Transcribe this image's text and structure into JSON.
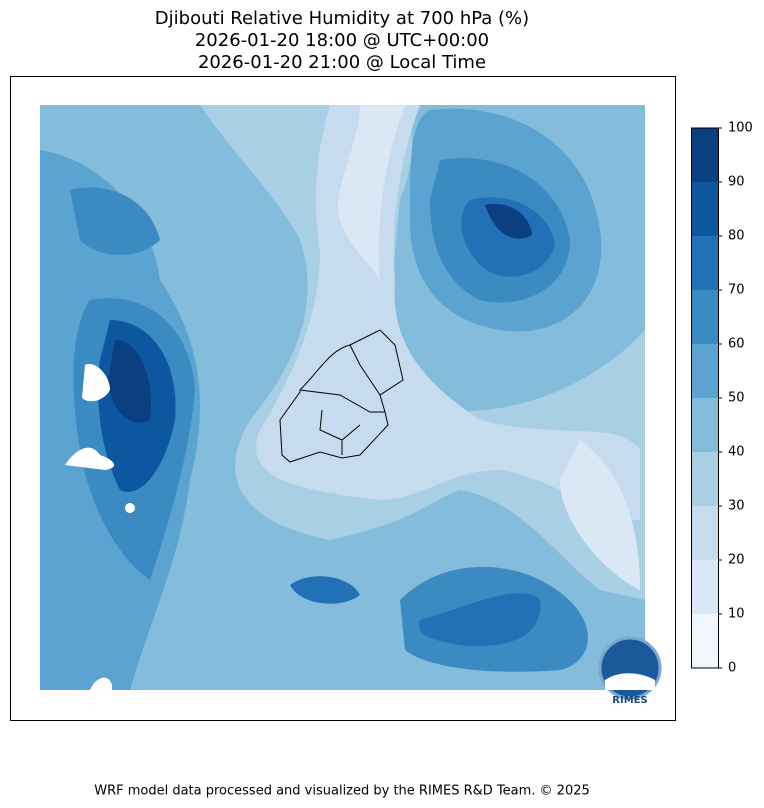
{
  "title": [
    "Djibouti Relative Humidity at 700 hPa (%)",
    "2026-01-20 18:00 @ UTC+00:00",
    "2026-01-20 21:00 @ Local Time"
  ],
  "colorbar": {
    "lim": [
      0,
      100
    ],
    "ticks": [
      0,
      10,
      20,
      30,
      40,
      50,
      60,
      70,
      80,
      90,
      100
    ],
    "colors": [
      "#f0f6fd",
      "#dae8f5",
      "#c7dbef",
      "#a9cfe5",
      "#84bcdb",
      "#5ba3d0",
      "#3c8ac2",
      "#2270b5",
      "#0d56a0",
      "#0a3f80"
    ]
  },
  "logo": "RIMES",
  "footer": "WRF model data processed and visualized by the RIMES R&D Team. © 2025"
}
